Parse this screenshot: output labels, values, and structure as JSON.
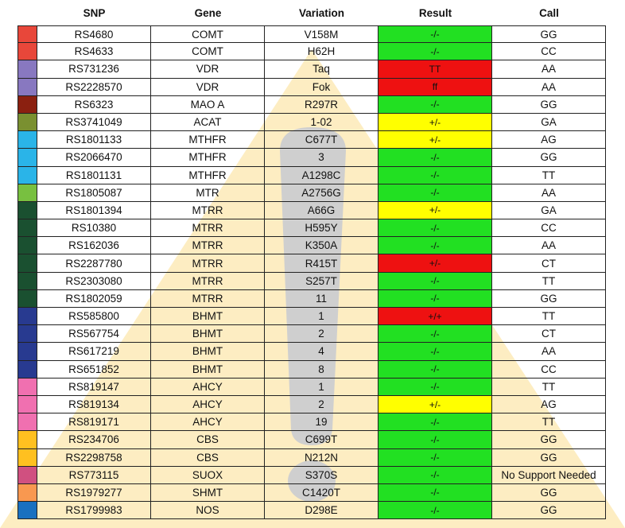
{
  "table": {
    "headers": [
      "SNP",
      "Gene",
      "Variation",
      "Result",
      "Call"
    ],
    "rows": [
      {
        "color": "#e8473a",
        "snp": "RS4680",
        "gene": "COMT",
        "variation": "V158M",
        "result": "-/-",
        "result_color": "#22e022",
        "call": "GG"
      },
      {
        "color": "#e8473a",
        "snp": "RS4633",
        "gene": "COMT",
        "variation": "H62H",
        "result": "-/-",
        "result_color": "#22e022",
        "call": "CC"
      },
      {
        "color": "#8878c0",
        "snp": "RS731236",
        "gene": "VDR",
        "variation": "Taq",
        "result": "TT",
        "result_color": "#ee1111",
        "call": "AA"
      },
      {
        "color": "#8878c0",
        "snp": "RS2228570",
        "gene": "VDR",
        "variation": "Fok",
        "result": "ff",
        "result_color": "#ee1111",
        "call": "AA"
      },
      {
        "color": "#8b2010",
        "snp": "RS6323",
        "gene": "MAO A",
        "variation": "R297R",
        "result": "-/-",
        "result_color": "#22e022",
        "call": "GG"
      },
      {
        "color": "#7a9030",
        "snp": "RS3741049",
        "gene": "ACAT",
        "variation": "1-02",
        "result": "+/-",
        "result_color": "#ffff00",
        "call": "GA"
      },
      {
        "color": "#2ab4e8",
        "snp": "RS1801133",
        "gene": "MTHFR",
        "variation": "C677T",
        "result": "+/-",
        "result_color": "#ffff00",
        "call": "AG"
      },
      {
        "color": "#2ab4e8",
        "snp": "RS2066470",
        "gene": "MTHFR",
        "variation": "3",
        "result": "-/-",
        "result_color": "#22e022",
        "call": "GG"
      },
      {
        "color": "#2ab4e8",
        "snp": "RS1801131",
        "gene": "MTHFR",
        "variation": "A1298C",
        "result": "-/-",
        "result_color": "#22e022",
        "call": "TT"
      },
      {
        "color": "#78c040",
        "snp": "RS1805087",
        "gene": "MTR",
        "variation": "A2756G",
        "result": "-/-",
        "result_color": "#22e022",
        "call": "AA"
      },
      {
        "color": "#1a5030",
        "snp": "RS1801394",
        "gene": "MTRR",
        "variation": "A66G",
        "result": "+/-",
        "result_color": "#ffff00",
        "call": "GA"
      },
      {
        "color": "#1a5030",
        "snp": "RS10380",
        "gene": "MTRR",
        "variation": "H595Y",
        "result": "-/-",
        "result_color": "#22e022",
        "call": "CC"
      },
      {
        "color": "#1a5030",
        "snp": "RS162036",
        "gene": "MTRR",
        "variation": "K350A",
        "result": "-/-",
        "result_color": "#22e022",
        "call": "AA"
      },
      {
        "color": "#1a5030",
        "snp": "RS2287780",
        "gene": "MTRR",
        "variation": "R415T",
        "result": "+/-",
        "result_color": "#ee1111",
        "call": "CT"
      },
      {
        "color": "#1a5030",
        "snp": "RS2303080",
        "gene": "MTRR",
        "variation": "S257T",
        "result": "-/-",
        "result_color": "#22e022",
        "call": "TT"
      },
      {
        "color": "#1a5030",
        "snp": "RS1802059",
        "gene": "MTRR",
        "variation": "11",
        "result": "-/-",
        "result_color": "#22e022",
        "call": "GG"
      },
      {
        "color": "#283a90",
        "snp": "RS585800",
        "gene": "BHMT",
        "variation": "1",
        "result": "+/+",
        "result_color": "#ee1111",
        "call": "TT"
      },
      {
        "color": "#283a90",
        "snp": "RS567754",
        "gene": "BHMT",
        "variation": "2",
        "result": "-/-",
        "result_color": "#22e022",
        "call": "CT"
      },
      {
        "color": "#283a90",
        "snp": "RS617219",
        "gene": "BHMT",
        "variation": "4",
        "result": "-/-",
        "result_color": "#22e022",
        "call": "AA"
      },
      {
        "color": "#283a90",
        "snp": "RS651852",
        "gene": "BHMT",
        "variation": "8",
        "result": "-/-",
        "result_color": "#22e022",
        "call": "CC"
      },
      {
        "color": "#f070b0",
        "snp": "RS819147",
        "gene": "AHCY",
        "variation": "1",
        "result": "-/-",
        "result_color": "#22e022",
        "call": "TT"
      },
      {
        "color": "#f070b0",
        "snp": "RS819134",
        "gene": "AHCY",
        "variation": "2",
        "result": "+/-",
        "result_color": "#ffff00",
        "call": "AG"
      },
      {
        "color": "#f070b0",
        "snp": "RS819171",
        "gene": "AHCY",
        "variation": "19",
        "result": "-/-",
        "result_color": "#22e022",
        "call": "TT"
      },
      {
        "color": "#ffc020",
        "snp": "RS234706",
        "gene": "CBS",
        "variation": "C699T",
        "result": "-/-",
        "result_color": "#22e022",
        "call": "GG"
      },
      {
        "color": "#ffc020",
        "snp": "RS2298758",
        "gene": "CBS",
        "variation": "N212N",
        "result": "-/-",
        "result_color": "#22e022",
        "call": "GG"
      },
      {
        "color": "#d05080",
        "snp": "RS773115",
        "gene": "SUOX",
        "variation": "S370S",
        "result": "-/-",
        "result_color": "#22e022",
        "call": "No Support Needed"
      },
      {
        "color": "#f89850",
        "snp": "RS1979277",
        "gene": "SHMT",
        "variation": "C1420T",
        "result": "-/-",
        "result_color": "#22e022",
        "call": "GG"
      },
      {
        "color": "#1a70c0",
        "snp": "RS1799983",
        "gene": "NOS",
        "variation": "D298E",
        "result": "-/-",
        "result_color": "#22e022",
        "call": "GG"
      }
    ]
  }
}
